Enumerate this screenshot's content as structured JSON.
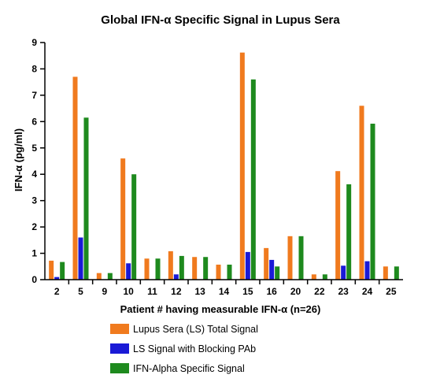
{
  "chart_data": {
    "type": "bar",
    "title": "Global IFN-α Specific Signal in Lupus Sera",
    "xlabel": "Patient # having measurable IFN-α (n=26)",
    "ylabel": "IFN-α (pg/ml)",
    "ylim": [
      0,
      9
    ],
    "yticks": [
      "0",
      "1",
      "2",
      "3",
      "4",
      "5",
      "6",
      "7",
      "8",
      "9"
    ],
    "grid": false,
    "legend_position": "bottom",
    "categories": [
      "2",
      "5",
      "9",
      "10",
      "11",
      "12",
      "13",
      "14",
      "15",
      "16",
      "20",
      "22",
      "23",
      "24",
      "25"
    ],
    "series": [
      {
        "name": "Lupus Sera (LS) Total Signal",
        "color": "#f07a1e",
        "values": [
          0.72,
          7.7,
          0.25,
          4.6,
          0.8,
          1.08,
          0.86,
          0.57,
          8.62,
          1.2,
          1.65,
          0.2,
          4.12,
          6.6,
          0.5
        ]
      },
      {
        "name": "LS Signal with Blocking PAb",
        "color": "#1a1ad6",
        "values": [
          0.1,
          1.6,
          0.0,
          0.62,
          0.0,
          0.2,
          0.0,
          0.0,
          1.05,
          0.75,
          0.0,
          0.0,
          0.53,
          0.7,
          0.0
        ]
      },
      {
        "name": "IFN-Alpha Specific Signal",
        "color": "#1e8a1e",
        "values": [
          0.67,
          6.15,
          0.25,
          4.0,
          0.8,
          0.9,
          0.86,
          0.57,
          7.6,
          0.5,
          1.65,
          0.2,
          3.62,
          5.92,
          0.5
        ]
      }
    ]
  }
}
